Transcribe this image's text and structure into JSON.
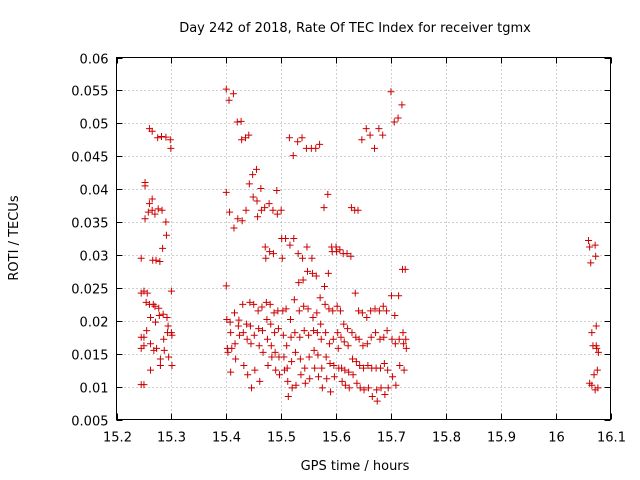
{
  "chart_data": {
    "type": "scatter",
    "title": "Day 242 of 2018, Rate Of TEC Index for receiver tgmx",
    "xlabel": "GPS time / hours",
    "ylabel": "ROTI / TECUs",
    "xlim": [
      15.2,
      16.1
    ],
    "ylim": [
      0.005,
      0.06
    ],
    "x_ticks": [
      15.2,
      15.3,
      15.4,
      15.5,
      15.6,
      15.7,
      15.8,
      15.9,
      16.0,
      16.1
    ],
    "x_tick_labels": [
      "15.2",
      "15.3",
      "15.4",
      "15.5",
      "15.6",
      "15.7",
      "15.8",
      "15.9",
      "16",
      "16.1"
    ],
    "y_ticks": [
      0.005,
      0.01,
      0.015,
      0.02,
      0.025,
      0.03,
      0.035,
      0.04,
      0.045,
      0.05,
      0.055,
      0.06
    ],
    "y_tick_labels": [
      "0.005",
      "0.01",
      "0.015",
      "0.02",
      "0.025",
      "0.03",
      "0.035",
      "0.04",
      "0.045",
      "0.05",
      "0.055",
      "0.06"
    ],
    "grid": true,
    "marker": "plus",
    "marker_color": "#cc0000",
    "points": [
      [
        15.245,
        0.0295
      ],
      [
        15.245,
        0.0242
      ],
      [
        15.245,
        0.0175
      ],
      [
        15.245,
        0.0158
      ],
      [
        15.245,
        0.0103
      ],
      [
        15.25,
        0.0245
      ],
      [
        15.25,
        0.0175
      ],
      [
        15.25,
        0.0162
      ],
      [
        15.25,
        0.0103
      ],
      [
        15.252,
        0.041
      ],
      [
        15.252,
        0.0405
      ],
      [
        15.252,
        0.0355
      ],
      [
        15.254,
        0.0228
      ],
      [
        15.255,
        0.0185
      ],
      [
        15.256,
        0.0242
      ],
      [
        15.258,
        0.0365
      ],
      [
        15.26,
        0.0492
      ],
      [
        15.26,
        0.0378
      ],
      [
        15.26,
        0.0225
      ],
      [
        15.262,
        0.0205
      ],
      [
        15.262,
        0.0165
      ],
      [
        15.262,
        0.0125
      ],
      [
        15.265,
        0.0488
      ],
      [
        15.265,
        0.0385
      ],
      [
        15.265,
        0.0368
      ],
      [
        15.266,
        0.0292
      ],
      [
        15.267,
        0.0225
      ],
      [
        15.268,
        0.0155
      ],
      [
        15.27,
        0.0362
      ],
      [
        15.27,
        0.0222
      ],
      [
        15.271,
        0.0198
      ],
      [
        15.272,
        0.0292
      ],
      [
        15.273,
        0.0158
      ],
      [
        15.275,
        0.0478
      ],
      [
        15.276,
        0.037
      ],
      [
        15.277,
        0.0219
      ],
      [
        15.278,
        0.0208
      ],
      [
        15.279,
        0.029
      ],
      [
        15.28,
        0.0142
      ],
      [
        15.28,
        0.0132
      ],
      [
        15.282,
        0.048
      ],
      [
        15.283,
        0.0368
      ],
      [
        15.284,
        0.031
      ],
      [
        15.285,
        0.021
      ],
      [
        15.286,
        0.0172
      ],
      [
        15.287,
        0.0155
      ],
      [
        15.29,
        0.0479
      ],
      [
        15.29,
        0.035
      ],
      [
        15.291,
        0.033
      ],
      [
        15.292,
        0.0205
      ],
      [
        15.293,
        0.0182
      ],
      [
        15.294,
        0.0192
      ],
      [
        15.295,
        0.0145
      ],
      [
        15.298,
        0.0475
      ],
      [
        15.299,
        0.0462
      ],
      [
        15.3,
        0.0245
      ],
      [
        15.3,
        0.0182
      ],
      [
        15.301,
        0.0178
      ],
      [
        15.301,
        0.0132
      ],
      [
        15.4,
        0.0552
      ],
      [
        15.4,
        0.0395
      ],
      [
        15.4,
        0.0253
      ],
      [
        15.401,
        0.0202
      ],
      [
        15.402,
        0.0158
      ],
      [
        15.403,
        0.0152
      ],
      [
        15.405,
        0.0535
      ],
      [
        15.406,
        0.0365
      ],
      [
        15.407,
        0.0198
      ],
      [
        15.408,
        0.0182
      ],
      [
        15.408,
        0.0122
      ],
      [
        15.41,
        0.0158
      ],
      [
        15.413,
        0.0545
      ],
      [
        15.414,
        0.0341
      ],
      [
        15.415,
        0.0212
      ],
      [
        15.416,
        0.0165
      ],
      [
        15.417,
        0.0142
      ],
      [
        15.42,
        0.0502
      ],
      [
        15.421,
        0.0355
      ],
      [
        15.422,
        0.0192
      ],
      [
        15.423,
        0.0201
      ],
      [
        15.424,
        0.0178
      ],
      [
        15.427,
        0.0503
      ],
      [
        15.428,
        0.0475
      ],
      [
        15.429,
        0.0352
      ],
      [
        15.43,
        0.0225
      ],
      [
        15.431,
        0.0182
      ],
      [
        15.432,
        0.0132
      ],
      [
        15.435,
        0.0478
      ],
      [
        15.436,
        0.0368
      ],
      [
        15.437,
        0.0195
      ],
      [
        15.438,
        0.0172
      ],
      [
        15.439,
        0.0118
      ],
      [
        15.441,
        0.0482
      ],
      [
        15.442,
        0.0408
      ],
      [
        15.443,
        0.0228
      ],
      [
        15.444,
        0.0192
      ],
      [
        15.445,
        0.0165
      ],
      [
        15.446,
        0.0098
      ],
      [
        15.448,
        0.0422
      ],
      [
        15.449,
        0.0388
      ],
      [
        15.45,
        0.0225
      ],
      [
        15.451,
        0.0178
      ],
      [
        15.452,
        0.0125
      ],
      [
        15.455,
        0.043
      ],
      [
        15.456,
        0.0382
      ],
      [
        15.457,
        0.0358
      ],
      [
        15.458,
        0.0215
      ],
      [
        15.459,
        0.0188
      ],
      [
        15.46,
        0.0162
      ],
      [
        15.461,
        0.0108
      ],
      [
        15.463,
        0.0401
      ],
      [
        15.464,
        0.0368
      ],
      [
        15.465,
        0.0221
      ],
      [
        15.466,
        0.0185
      ],
      [
        15.467,
        0.0152
      ],
      [
        15.47,
        0.0372
      ],
      [
        15.471,
        0.0312
      ],
      [
        15.472,
        0.0295
      ],
      [
        15.473,
        0.0228
      ],
      [
        15.474,
        0.0202
      ],
      [
        15.475,
        0.0172
      ],
      [
        15.476,
        0.0132
      ],
      [
        15.478,
        0.0378
      ],
      [
        15.479,
        0.0305
      ],
      [
        15.48,
        0.0225
      ],
      [
        15.481,
        0.0195
      ],
      [
        15.482,
        0.0162
      ],
      [
        15.483,
        0.0145
      ],
      [
        15.485,
        0.0368
      ],
      [
        15.486,
        0.0302
      ],
      [
        15.487,
        0.0212
      ],
      [
        15.488,
        0.0182
      ],
      [
        15.489,
        0.0152
      ],
      [
        15.49,
        0.0125
      ],
      [
        15.492,
        0.0398
      ],
      [
        15.493,
        0.0362
      ],
      [
        15.494,
        0.0215
      ],
      [
        15.495,
        0.0188
      ],
      [
        15.496,
        0.0145
      ],
      [
        15.497,
        0.0118
      ],
      [
        15.5,
        0.0368
      ],
      [
        15.501,
        0.0325
      ],
      [
        15.502,
        0.0295
      ],
      [
        15.503,
        0.0215
      ],
      [
        15.504,
        0.0178
      ],
      [
        15.505,
        0.0145
      ],
      [
        15.506,
        0.0125
      ],
      [
        15.508,
        0.0325
      ],
      [
        15.509,
        0.0218
      ],
      [
        15.51,
        0.0162
      ],
      [
        15.511,
        0.0128
      ],
      [
        15.512,
        0.0108
      ],
      [
        15.513,
        0.0085
      ],
      [
        15.515,
        0.0478
      ],
      [
        15.516,
        0.0315
      ],
      [
        15.517,
        0.0202
      ],
      [
        15.518,
        0.0175
      ],
      [
        15.519,
        0.0138
      ],
      [
        15.52,
        0.0098
      ],
      [
        15.522,
        0.0451
      ],
      [
        15.523,
        0.0325
      ],
      [
        15.524,
        0.0232
      ],
      [
        15.525,
        0.0182
      ],
      [
        15.526,
        0.0152
      ],
      [
        15.527,
        0.0102
      ],
      [
        15.53,
        0.0472
      ],
      [
        15.531,
        0.0302
      ],
      [
        15.532,
        0.0258
      ],
      [
        15.533,
        0.0215
      ],
      [
        15.534,
        0.0175
      ],
      [
        15.535,
        0.0142
      ],
      [
        15.536,
        0.0118
      ],
      [
        15.538,
        0.0478
      ],
      [
        15.539,
        0.0295
      ],
      [
        15.54,
        0.0262
      ],
      [
        15.541,
        0.0222
      ],
      [
        15.542,
        0.0185
      ],
      [
        15.543,
        0.0128
      ],
      [
        15.544,
        0.0105
      ],
      [
        15.546,
        0.0462
      ],
      [
        15.547,
        0.0312
      ],
      [
        15.548,
        0.0275
      ],
      [
        15.549,
        0.0218
      ],
      [
        15.55,
        0.0178
      ],
      [
        15.551,
        0.0145
      ],
      [
        15.552,
        0.0112
      ],
      [
        15.555,
        0.0462
      ],
      [
        15.556,
        0.0295
      ],
      [
        15.557,
        0.0272
      ],
      [
        15.558,
        0.0205
      ],
      [
        15.559,
        0.0185
      ],
      [
        15.56,
        0.0155
      ],
      [
        15.561,
        0.0128
      ],
      [
        15.563,
        0.0462
      ],
      [
        15.564,
        0.0268
      ],
      [
        15.565,
        0.0212
      ],
      [
        15.566,
        0.0182
      ],
      [
        15.567,
        0.0148
      ],
      [
        15.568,
        0.0115
      ],
      [
        15.57,
        0.0468
      ],
      [
        15.571,
        0.0235
      ],
      [
        15.572,
        0.0195
      ],
      [
        15.573,
        0.0172
      ],
      [
        15.574,
        0.0128
      ],
      [
        15.575,
        0.0098
      ],
      [
        15.578,
        0.0372
      ],
      [
        15.579,
        0.0252
      ],
      [
        15.58,
        0.0225
      ],
      [
        15.581,
        0.0182
      ],
      [
        15.582,
        0.0145
      ],
      [
        15.583,
        0.0112
      ],
      [
        15.585,
        0.0392
      ],
      [
        15.586,
        0.0272
      ],
      [
        15.587,
        0.0218
      ],
      [
        15.588,
        0.0165
      ],
      [
        15.589,
        0.0135
      ],
      [
        15.59,
        0.0092
      ],
      [
        15.592,
        0.0312
      ],
      [
        15.593,
        0.0305
      ],
      [
        15.594,
        0.0215
      ],
      [
        15.595,
        0.0172
      ],
      [
        15.596,
        0.0132
      ],
      [
        15.597,
        0.0115
      ],
      [
        15.6,
        0.0312
      ],
      [
        15.601,
        0.0305
      ],
      [
        15.602,
        0.0222
      ],
      [
        15.603,
        0.0182
      ],
      [
        15.604,
        0.0158
      ],
      [
        15.605,
        0.0128
      ],
      [
        15.607,
        0.0308
      ],
      [
        15.608,
        0.0215
      ],
      [
        15.609,
        0.0175
      ],
      [
        15.61,
        0.0128
      ],
      [
        15.611,
        0.0108
      ],
      [
        15.613,
        0.0302
      ],
      [
        15.614,
        0.0195
      ],
      [
        15.615,
        0.0168
      ],
      [
        15.616,
        0.0125
      ],
      [
        15.617,
        0.0102
      ],
      [
        15.62,
        0.0302
      ],
      [
        15.621,
        0.0188
      ],
      [
        15.622,
        0.0162
      ],
      [
        15.623,
        0.0122
      ],
      [
        15.624,
        0.0098
      ],
      [
        15.627,
        0.0298
      ],
      [
        15.628,
        0.0372
      ],
      [
        15.629,
        0.0182
      ],
      [
        15.63,
        0.0142
      ],
      [
        15.631,
        0.0118
      ],
      [
        15.634,
        0.0368
      ],
      [
        15.635,
        0.0242
      ],
      [
        15.636,
        0.0175
      ],
      [
        15.637,
        0.0138
      ],
      [
        15.638,
        0.0105
      ],
      [
        15.64,
        0.0368
      ],
      [
        15.641,
        0.0215
      ],
      [
        15.642,
        0.0172
      ],
      [
        15.643,
        0.0132
      ],
      [
        15.644,
        0.0098
      ],
      [
        15.647,
        0.0475
      ],
      [
        15.648,
        0.0212
      ],
      [
        15.649,
        0.0162
      ],
      [
        15.65,
        0.0128
      ],
      [
        15.651,
        0.0095
      ],
      [
        15.655,
        0.0492
      ],
      [
        15.656,
        0.0205
      ],
      [
        15.657,
        0.0165
      ],
      [
        15.658,
        0.0132
      ],
      [
        15.659,
        0.0098
      ],
      [
        15.662,
        0.0482
      ],
      [
        15.663,
        0.0215
      ],
      [
        15.664,
        0.0175
      ],
      [
        15.665,
        0.0128
      ],
      [
        15.666,
        0.0085
      ],
      [
        15.67,
        0.0462
      ],
      [
        15.671,
        0.0218
      ],
      [
        15.672,
        0.0182
      ],
      [
        15.673,
        0.0128
      ],
      [
        15.674,
        0.0095
      ],
      [
        15.675,
        0.0078
      ],
      [
        15.678,
        0.0492
      ],
      [
        15.679,
        0.0215
      ],
      [
        15.68,
        0.0172
      ],
      [
        15.681,
        0.0128
      ],
      [
        15.682,
        0.0098
      ],
      [
        15.685,
        0.0482
      ],
      [
        15.686,
        0.0222
      ],
      [
        15.687,
        0.0175
      ],
      [
        15.688,
        0.0135
      ],
      [
        15.689,
        0.0088
      ],
      [
        15.692,
        0.0215
      ],
      [
        15.693,
        0.0185
      ],
      [
        15.694,
        0.0125
      ],
      [
        15.695,
        0.0098
      ],
      [
        15.7,
        0.0548
      ],
      [
        15.701,
        0.0238
      ],
      [
        15.702,
        0.0172
      ],
      [
        15.703,
        0.0115
      ],
      [
        15.706,
        0.0502
      ],
      [
        15.707,
        0.0208
      ],
      [
        15.708,
        0.0165
      ],
      [
        15.709,
        0.0102
      ],
      [
        15.713,
        0.0508
      ],
      [
        15.714,
        0.0238
      ],
      [
        15.715,
        0.0172
      ],
      [
        15.716,
        0.0132
      ],
      [
        15.72,
        0.0528
      ],
      [
        15.721,
        0.0278
      ],
      [
        15.722,
        0.0182
      ],
      [
        15.723,
        0.0165
      ],
      [
        15.724,
        0.0125
      ],
      [
        15.726,
        0.0278
      ],
      [
        15.727,
        0.0172
      ],
      [
        15.728,
        0.0158
      ],
      [
        16.06,
        0.0322
      ],
      [
        16.062,
        0.0312
      ],
      [
        16.064,
        0.0288
      ],
      [
        16.066,
        0.0182
      ],
      [
        16.068,
        0.0162
      ],
      [
        16.07,
        0.0118
      ],
      [
        16.072,
        0.0315
      ],
      [
        16.073,
        0.0298
      ],
      [
        16.074,
        0.0192
      ],
      [
        16.075,
        0.0158
      ],
      [
        16.076,
        0.0125
      ],
      [
        16.077,
        0.0098
      ],
      [
        16.062,
        0.0105
      ],
      [
        16.066,
        0.0102
      ],
      [
        16.072,
        0.0095
      ],
      [
        16.074,
        0.0162
      ],
      [
        16.078,
        0.0152
      ]
    ]
  }
}
